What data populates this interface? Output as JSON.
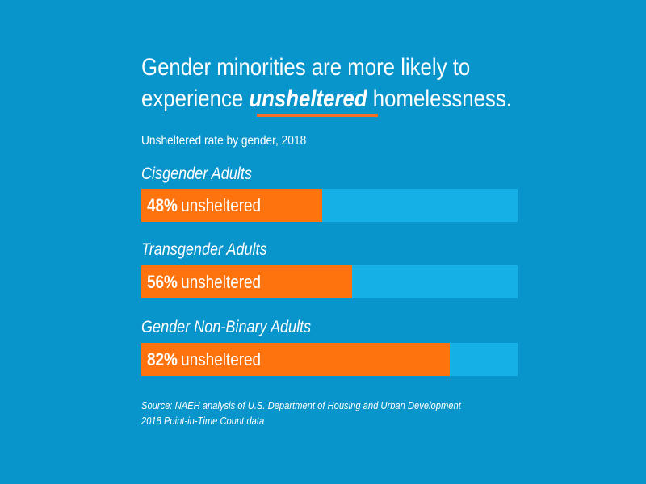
{
  "chart_data": {
    "type": "bar",
    "orientation": "horizontal",
    "title_parts": [
      "Gender minorities are more likely to",
      "experience",
      "unsheltered",
      "homelessness."
    ],
    "subtitle": "Unsheltered rate by gender, 2018",
    "categories": [
      "Cisgender Adults",
      "Transgender Adults",
      "Gender Non-Binary Adults"
    ],
    "values": [
      48,
      56,
      82
    ],
    "value_labels": [
      "48%",
      "56%",
      "82%"
    ],
    "value_suffix": "unsheltered",
    "xlim": [
      0,
      100
    ],
    "grid": false,
    "source_lines": [
      "Source: NAEH analysis of  U.S. Department of Housing and Urban Development",
      "2018 Point-in-Time Count data"
    ],
    "colors": {
      "background": "#0795cb",
      "track": "#14b0e6",
      "fill": "#ff730f",
      "accent_underline": "#f36f21"
    }
  }
}
